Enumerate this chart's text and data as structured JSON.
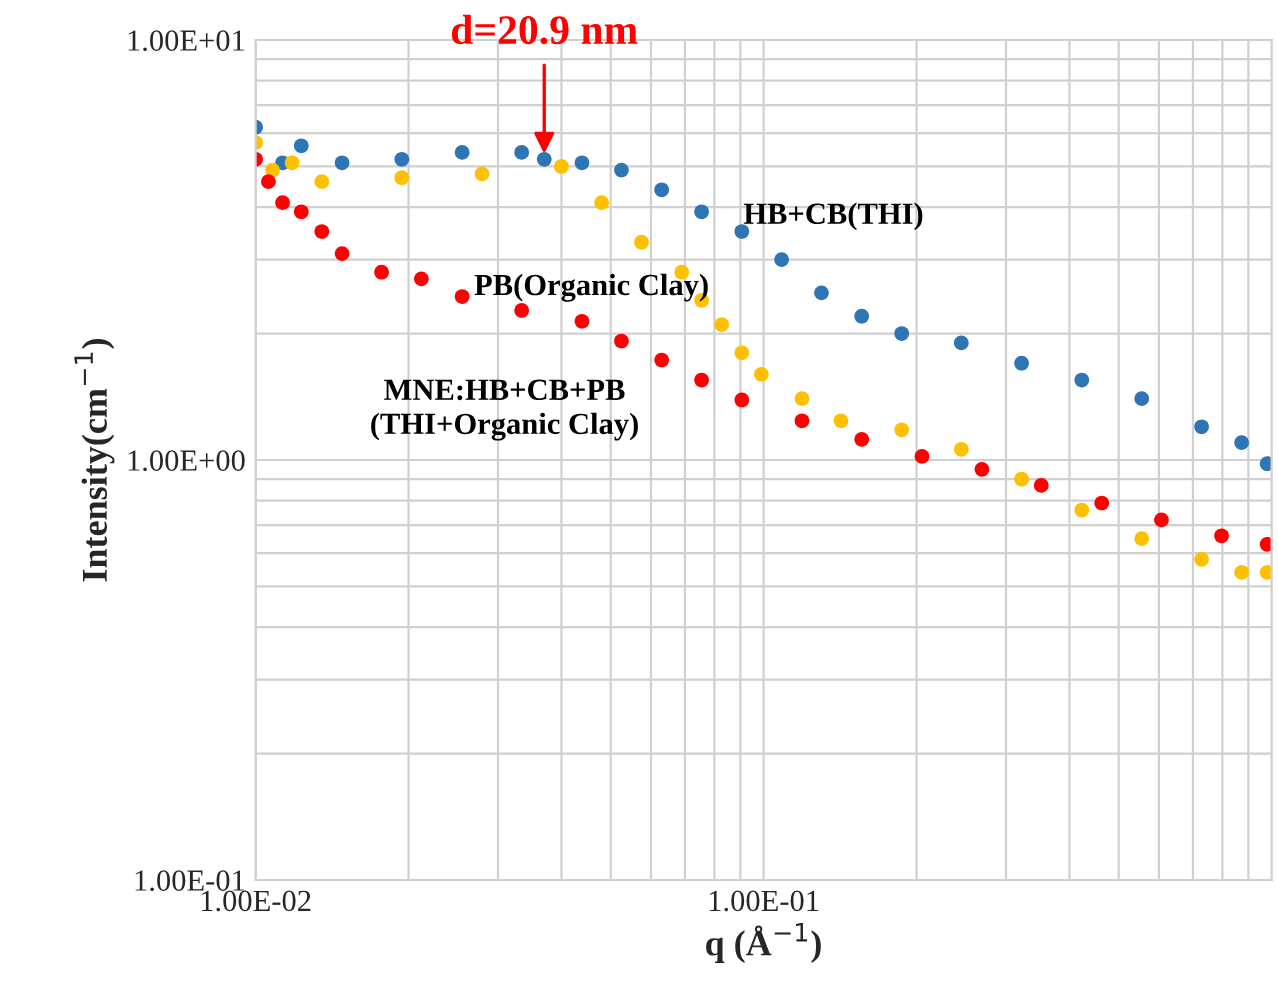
{
  "chart_data": {
    "type": "scatter",
    "xlabel": "q (Å$^{−1}$)",
    "ylabel": "Intensity(cm$^{−1}$)",
    "log": "xy",
    "grid": true,
    "legend": false,
    "marker": "circle",
    "xlim": [
      0.01,
      1
    ],
    "xticks": [
      {
        "value": 0.01,
        "label": "1.00E-02"
      },
      {
        "value": 0.1,
        "label": "1.00E-01"
      }
    ],
    "ylim": [
      0.1,
      10
    ],
    "yticks": [
      {
        "value": 0.1,
        "label": "1.00E-01"
      },
      {
        "value": 1,
        "label": "1.00E+00"
      },
      {
        "value": 10,
        "label": "1.00E+01"
      }
    ],
    "annotations": [
      {
        "text": "d=20.9 nm",
        "x": 0.037,
        "y": 5.2
      }
    ],
    "series": [
      {
        "name": "HB+CB(THI)",
        "color": "#2e75b6",
        "x": [
          0.01,
          0.0113,
          0.0123,
          0.0148,
          0.0194,
          0.0255,
          0.0334,
          0.037,
          0.0439,
          0.0525,
          0.063,
          0.0755,
          0.0906,
          0.1085,
          0.13,
          0.156,
          0.187,
          0.245,
          0.322,
          0.423,
          0.555,
          0.728,
          0.873,
          0.98
        ],
        "values": [
          6.2,
          5.1,
          5.6,
          5.1,
          5.2,
          5.4,
          5.4,
          5.2,
          5.1,
          4.9,
          4.4,
          3.9,
          3.5,
          3.0,
          2.5,
          2.2,
          2.0,
          1.9,
          1.7,
          1.55,
          1.4,
          1.2,
          1.1,
          0.98
        ]
      },
      {
        "name": "PB(Organic Clay)",
        "color": "#ffc000",
        "x": [
          0.01,
          0.0108,
          0.0118,
          0.0135,
          0.0194,
          0.0279,
          0.04,
          0.048,
          0.0575,
          0.069,
          0.0755,
          0.0827,
          0.0906,
          0.099,
          0.119,
          0.142,
          0.187,
          0.245,
          0.322,
          0.423,
          0.555,
          0.728,
          0.873,
          0.98
        ],
        "values": [
          5.7,
          4.9,
          5.1,
          4.6,
          4.7,
          4.8,
          5.0,
          4.1,
          3.3,
          2.8,
          2.4,
          2.1,
          1.8,
          1.6,
          1.4,
          1.24,
          1.18,
          1.06,
          0.9,
          0.76,
          0.65,
          0.58,
          0.54,
          0.54
        ]
      },
      {
        "name": "MNE:HB+CB+PB\n(THI+Organic Clay)",
        "color": "#ff0000",
        "x": [
          0.01,
          0.0106,
          0.0113,
          0.0123,
          0.0135,
          0.0148,
          0.0177,
          0.0212,
          0.0255,
          0.0334,
          0.0439,
          0.0525,
          0.063,
          0.0755,
          0.0906,
          0.119,
          0.156,
          0.205,
          0.269,
          0.352,
          0.463,
          0.607,
          0.797,
          0.98
        ],
        "values": [
          5.2,
          4.6,
          4.1,
          3.9,
          3.5,
          3.1,
          2.8,
          2.7,
          2.45,
          2.27,
          2.14,
          1.92,
          1.73,
          1.55,
          1.39,
          1.24,
          1.12,
          1.02,
          0.95,
          0.87,
          0.79,
          0.72,
          0.66,
          0.63
        ]
      }
    ]
  }
}
